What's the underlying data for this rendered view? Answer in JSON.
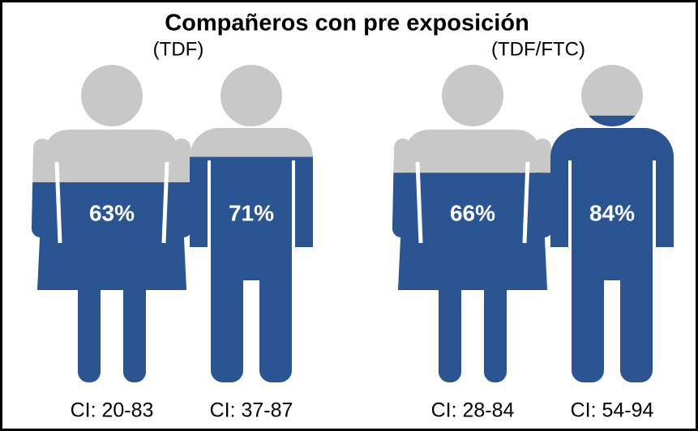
{
  "chart_data": {
    "type": "pictogram",
    "title": "Compañeros con pre exposición",
    "groups": [
      "(TDF)",
      "(TDF/FTC)"
    ],
    "values": [
      63,
      71,
      66,
      84
    ],
    "value_labels": [
      "63%",
      "71%",
      "66%",
      "84%"
    ],
    "ci_labels": [
      "CI: 20-83",
      "CI: 37-87",
      "CI: 28-84",
      "CI: 54-94"
    ],
    "shapes": [
      "female",
      "male",
      "female",
      "male"
    ],
    "color": "#2a5592",
    "empty_color": "#c8c8c8"
  }
}
